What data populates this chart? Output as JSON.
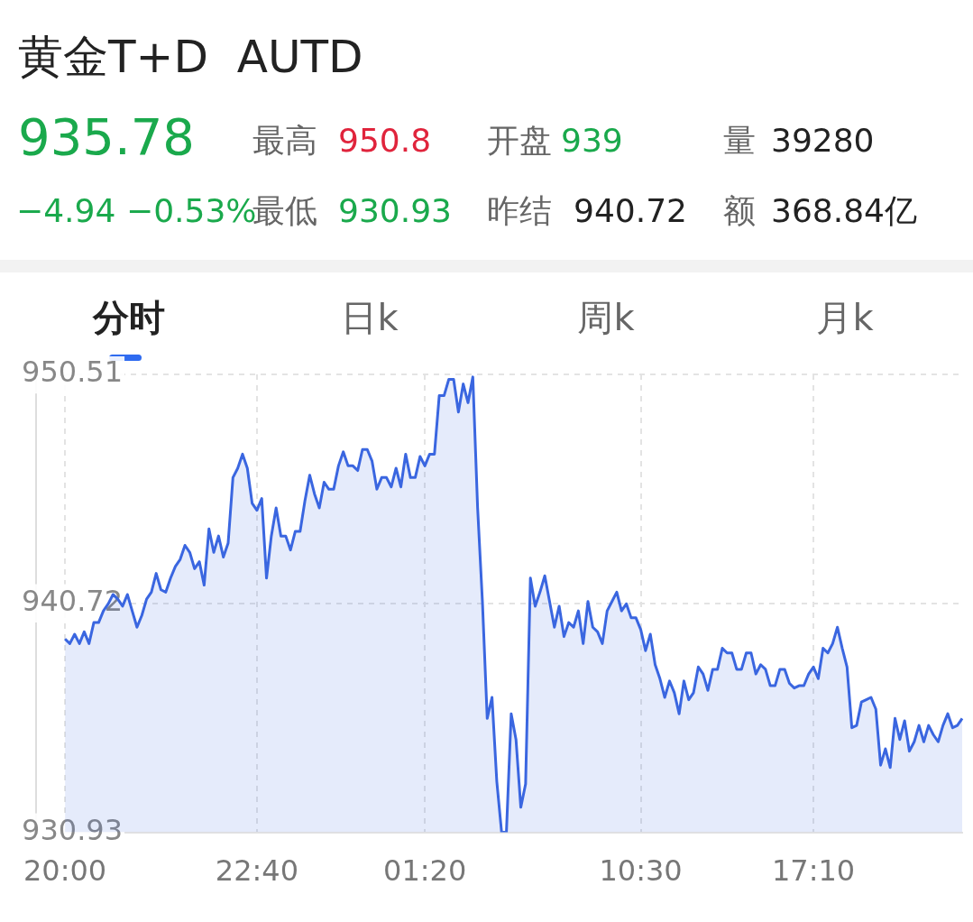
{
  "chart_data": [
    {
      "type": "other",
      "title": "黄金T+D  AUTD",
      "annotations": [
        "935.78",
        "最高",
        "950.8",
        "开盘",
        "939",
        "量",
        "39280",
        "−4.94",
        "−0.53%",
        "最低",
        "930.93",
        "昨结",
        "940.72",
        "额",
        "368.84亿",
        "分时",
        "日k",
        "周k",
        "月k"
      ]
    },
    {
      "type": "area",
      "color": "#3a66e0",
      "grid": true,
      "categories": [
        "20:00",
        null,
        null,
        null,
        null,
        null,
        null,
        null,
        null,
        null,
        null,
        null,
        null,
        null,
        null,
        null,
        null,
        null,
        null,
        null,
        null,
        null,
        null,
        null,
        null,
        null,
        null,
        null,
        null,
        null,
        null,
        null,
        null,
        null,
        null,
        null,
        null,
        null,
        null,
        null,
        "22:40",
        null,
        null,
        null,
        null,
        null,
        null,
        null,
        null,
        null,
        null,
        null,
        null,
        null,
        null,
        null,
        null,
        null,
        null,
        null,
        null,
        null,
        null,
        null,
        null,
        null,
        null,
        null,
        null,
        null,
        null,
        null,
        null,
        null,
        null,
        "01:20",
        null,
        null,
        null,
        null,
        null,
        null,
        null,
        null,
        null,
        null,
        null,
        null,
        null,
        null,
        null,
        null,
        null,
        null,
        null,
        null,
        null,
        null,
        null,
        null,
        null,
        null,
        null,
        null,
        null,
        null,
        null,
        null,
        null,
        null,
        null,
        null,
        null,
        null,
        null,
        null,
        null,
        null,
        null,
        null,
        "10:30",
        null,
        null,
        null,
        null,
        null,
        null,
        null,
        null,
        null,
        null,
        null,
        null,
        null,
        null,
        null,
        null,
        null,
        null,
        null,
        null,
        null,
        null,
        null,
        null,
        null,
        null,
        null,
        null,
        null,
        null,
        null,
        null,
        null,
        null,
        null,
        "17:10",
        null,
        null,
        null,
        null,
        null,
        null,
        null,
        null,
        null,
        null,
        null,
        null,
        null,
        null,
        null,
        null,
        null,
        null,
        null,
        null,
        null,
        null,
        null,
        null,
        null,
        null,
        null,
        null,
        null,
        null,
        null
      ],
      "ylim": [
        930.93,
        950.51
      ],
      "yticks": [
        930.93,
        940.72,
        950.51
      ],
      "values": [
        939.2,
        939.0,
        939.4,
        939.0,
        939.5,
        939.0,
        939.9,
        939.9,
        940.4,
        940.7,
        941.1,
        940.9,
        940.6,
        941.1,
        940.4,
        939.7,
        940.2,
        940.9,
        941.2,
        942.0,
        941.3,
        941.2,
        941.8,
        942.3,
        942.6,
        943.2,
        942.9,
        942.2,
        942.5,
        941.5,
        943.9,
        942.9,
        943.6,
        942.7,
        943.3,
        946.1,
        946.5,
        947.1,
        946.5,
        945.0,
        944.7,
        945.2,
        941.8,
        943.6,
        944.8,
        943.6,
        943.6,
        943.0,
        943.8,
        943.8,
        945.1,
        946.2,
        945.4,
        944.8,
        945.9,
        945.6,
        945.6,
        946.6,
        947.2,
        946.6,
        946.6,
        946.4,
        947.3,
        947.3,
        946.8,
        945.6,
        946.1,
        946.1,
        945.7,
        946.5,
        945.7,
        947.1,
        946.1,
        946.1,
        947.0,
        946.6,
        947.1,
        947.1,
        949.6,
        949.6,
        950.3,
        950.3,
        948.9,
        950.1,
        949.3,
        950.4,
        944.8,
        940.8,
        935.8,
        936.7,
        933.1,
        930.93,
        930.93,
        936.0,
        934.9,
        932.0,
        933.0,
        941.8,
        940.6,
        941.2,
        941.9,
        940.8,
        939.7,
        940.6,
        939.3,
        939.9,
        939.7,
        940.4,
        939.0,
        940.8,
        939.7,
        939.5,
        939.0,
        940.4,
        940.8,
        941.2,
        940.4,
        940.7,
        940.1,
        940.1,
        939.6,
        938.7,
        939.4,
        938.1,
        937.5,
        936.7,
        937.4,
        936.9,
        936.0,
        937.4,
        936.6,
        936.9,
        938.0,
        937.7,
        937.0,
        937.9,
        937.9,
        938.8,
        938.6,
        938.6,
        937.9,
        937.9,
        938.6,
        938.6,
        937.7,
        938.1,
        937.9,
        937.2,
        937.2,
        937.9,
        937.9,
        937.3,
        937.1,
        937.2,
        937.2,
        937.7,
        938.0,
        937.5,
        938.8,
        938.6,
        939.0,
        939.7,
        938.8,
        938.0,
        935.4,
        935.5,
        936.5,
        936.6,
        936.7,
        936.2,
        933.8,
        934.5,
        933.7,
        935.8,
        934.9,
        935.7,
        934.4,
        934.8,
        935.5,
        934.8,
        935.5,
        935.1,
        934.8,
        935.5,
        936.0,
        935.4,
        935.5,
        935.8
      ]
    }
  ]
}
